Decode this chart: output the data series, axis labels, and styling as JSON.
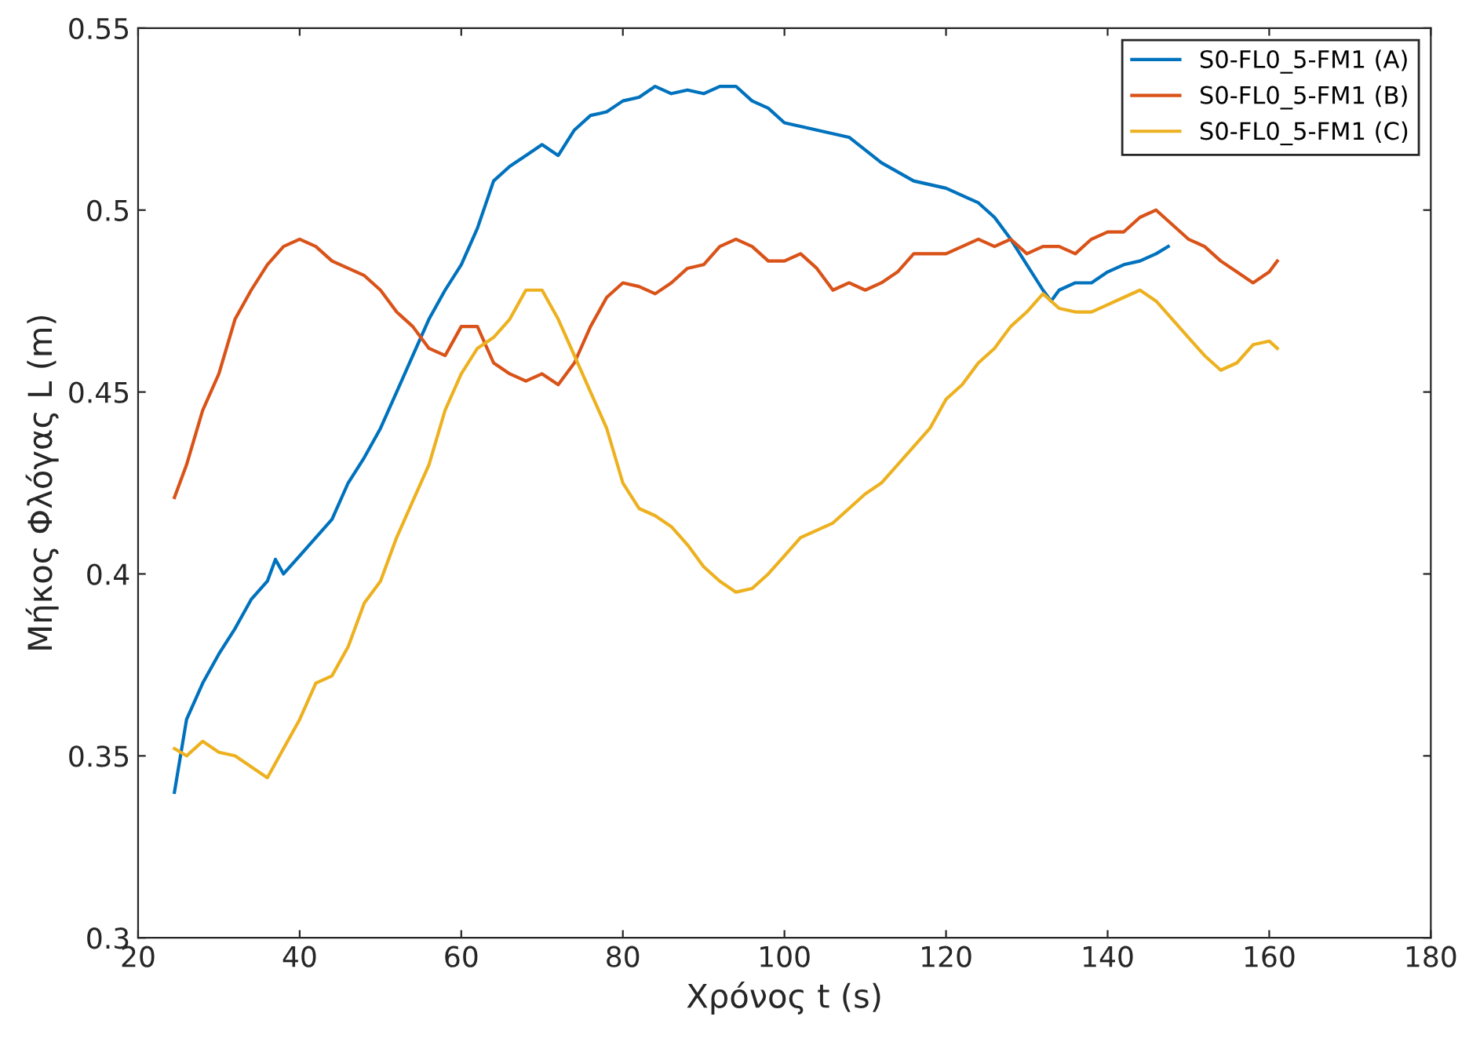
{
  "chart_data": {
    "type": "line",
    "xlabel": "Χρόνος t (s)",
    "ylabel": "Μήκος Φλόγας L (m)",
    "xlim": [
      20,
      180
    ],
    "xticks": [
      20,
      40,
      60,
      80,
      100,
      120,
      140,
      160,
      180
    ],
    "ylim": [
      0.3,
      0.55
    ],
    "yticks": [
      0.3,
      0.35,
      0.4,
      0.45,
      0.5,
      0.55
    ],
    "grid": false,
    "legend": "top right",
    "marker": "none",
    "line_style": "solid",
    "series": [
      {
        "name": "S0-FL0_5-FM1 (A)",
        "color": "#0072bd",
        "x": [
          24.5,
          26,
          28,
          30,
          32,
          34,
          36,
          37,
          38,
          40,
          42,
          44,
          46,
          48,
          50,
          52,
          54,
          56,
          58,
          60,
          62,
          64,
          66,
          68,
          70,
          72,
          74,
          76,
          78,
          80,
          82,
          84,
          86,
          88,
          90,
          92,
          94,
          96,
          98,
          100,
          104,
          108,
          112,
          116,
          120,
          124,
          126,
          128,
          130,
          132,
          133,
          134,
          136,
          138,
          140,
          142,
          144,
          146,
          147.5
        ],
        "values": [
          0.34,
          0.36,
          0.37,
          0.378,
          0.385,
          0.393,
          0.398,
          0.404,
          0.4,
          0.405,
          0.41,
          0.415,
          0.425,
          0.432,
          0.44,
          0.45,
          0.46,
          0.47,
          0.478,
          0.485,
          0.495,
          0.508,
          0.512,
          0.515,
          0.518,
          0.515,
          0.522,
          0.526,
          0.527,
          0.53,
          0.531,
          0.534,
          0.532,
          0.533,
          0.532,
          0.534,
          0.534,
          0.53,
          0.528,
          0.524,
          0.522,
          0.52,
          0.513,
          0.508,
          0.506,
          0.502,
          0.498,
          0.492,
          0.485,
          0.478,
          0.475,
          0.478,
          0.48,
          0.48,
          0.483,
          0.485,
          0.486,
          0.488,
          0.49
        ]
      },
      {
        "name": "S0-FL0_5-FM1 (B)",
        "color": "#d95319",
        "x": [
          24.5,
          26,
          28,
          30,
          32,
          34,
          36,
          38,
          40,
          42,
          44,
          46,
          48,
          50,
          52,
          54,
          56,
          58,
          60,
          62,
          64,
          66,
          68,
          70,
          72,
          74,
          76,
          78,
          80,
          82,
          84,
          86,
          88,
          90,
          92,
          94,
          96,
          98,
          100,
          102,
          104,
          106,
          108,
          110,
          112,
          114,
          116,
          118,
          120,
          122,
          124,
          126,
          128,
          130,
          132,
          134,
          136,
          138,
          140,
          142,
          144,
          146,
          148,
          150,
          152,
          154,
          156,
          158,
          160,
          161
        ],
        "values": [
          0.421,
          0.43,
          0.445,
          0.455,
          0.47,
          0.478,
          0.485,
          0.49,
          0.492,
          0.49,
          0.486,
          0.484,
          0.482,
          0.478,
          0.472,
          0.468,
          0.462,
          0.46,
          0.468,
          0.468,
          0.458,
          0.455,
          0.453,
          0.455,
          0.452,
          0.458,
          0.468,
          0.476,
          0.48,
          0.479,
          0.477,
          0.48,
          0.484,
          0.485,
          0.49,
          0.492,
          0.49,
          0.486,
          0.486,
          0.488,
          0.484,
          0.478,
          0.48,
          0.478,
          0.48,
          0.483,
          0.488,
          0.488,
          0.488,
          0.49,
          0.492,
          0.49,
          0.492,
          0.488,
          0.49,
          0.49,
          0.488,
          0.492,
          0.494,
          0.494,
          0.498,
          0.5,
          0.496,
          0.492,
          0.49,
          0.486,
          0.483,
          0.48,
          0.483,
          0.486
        ]
      },
      {
        "name": "S0-FL0_5-FM1 (C)",
        "color": "#edb120",
        "x": [
          24.5,
          26,
          28,
          30,
          32,
          34,
          36,
          38,
          40,
          42,
          44,
          46,
          48,
          50,
          52,
          54,
          56,
          58,
          60,
          62,
          64,
          66,
          68,
          70,
          72,
          74,
          76,
          78,
          80,
          82,
          84,
          86,
          88,
          90,
          92,
          94,
          96,
          98,
          100,
          102,
          104,
          106,
          108,
          110,
          112,
          114,
          116,
          118,
          120,
          122,
          124,
          126,
          128,
          130,
          132,
          134,
          136,
          138,
          140,
          142,
          144,
          146,
          148,
          150,
          152,
          154,
          156,
          158,
          160,
          161
        ],
        "values": [
          0.352,
          0.35,
          0.354,
          0.351,
          0.35,
          0.347,
          0.344,
          0.352,
          0.36,
          0.37,
          0.372,
          0.38,
          0.392,
          0.398,
          0.41,
          0.42,
          0.43,
          0.445,
          0.455,
          0.462,
          0.465,
          0.47,
          0.478,
          0.478,
          0.47,
          0.46,
          0.45,
          0.44,
          0.425,
          0.418,
          0.416,
          0.413,
          0.408,
          0.402,
          0.398,
          0.395,
          0.396,
          0.4,
          0.405,
          0.41,
          0.412,
          0.414,
          0.418,
          0.422,
          0.425,
          0.43,
          0.435,
          0.44,
          0.448,
          0.452,
          0.458,
          0.462,
          0.468,
          0.472,
          0.477,
          0.473,
          0.472,
          0.472,
          0.474,
          0.476,
          0.478,
          0.475,
          0.47,
          0.465,
          0.46,
          0.456,
          0.458,
          0.463,
          0.464,
          0.462
        ]
      }
    ]
  }
}
